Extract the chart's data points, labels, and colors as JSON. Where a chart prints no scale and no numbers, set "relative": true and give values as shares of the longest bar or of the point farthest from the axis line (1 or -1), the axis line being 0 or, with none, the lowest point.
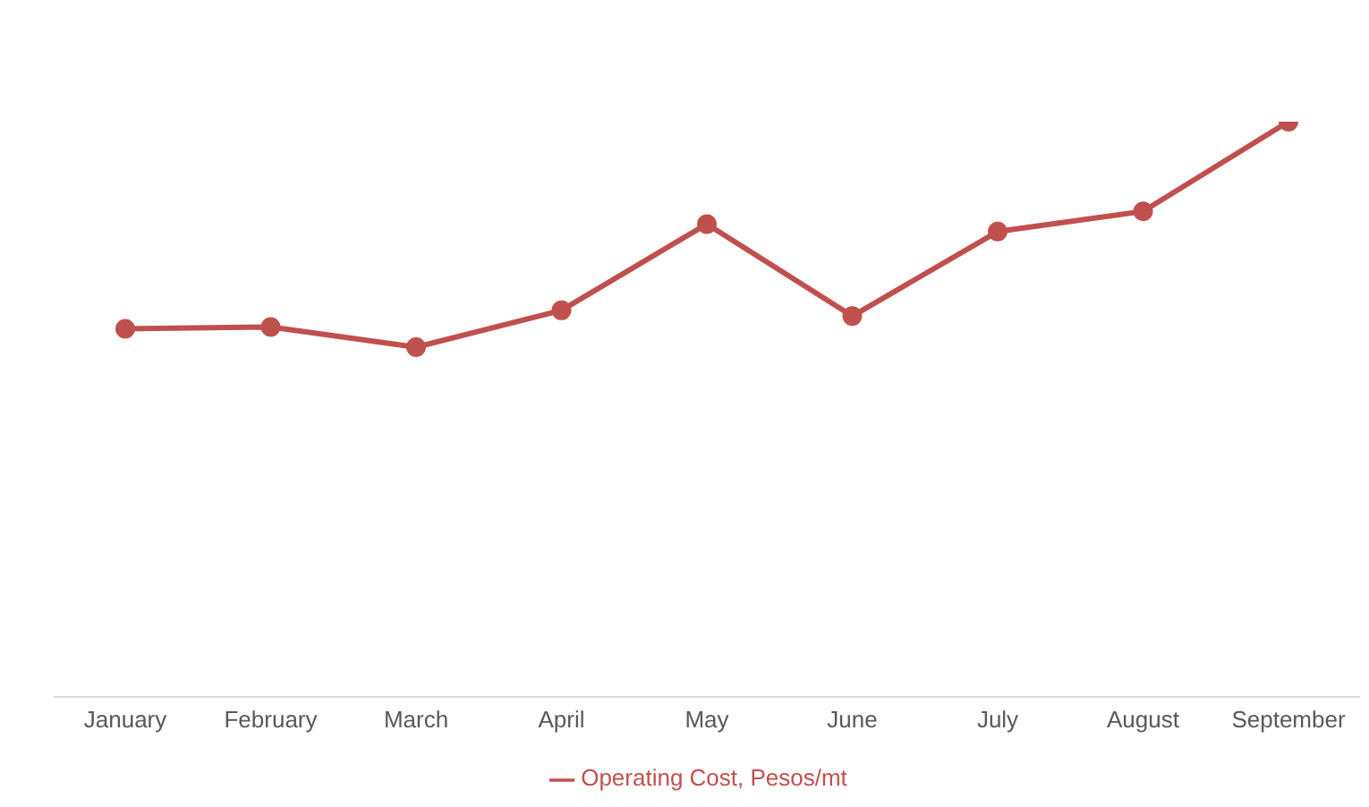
{
  "chart_data": {
    "type": "line",
    "relative": true,
    "categories": [
      "January",
      "February",
      "March",
      "April",
      "May",
      "June",
      "July",
      "August",
      "September"
    ],
    "series": [
      {
        "name": "Operating Cost, Pesos/mt",
        "color": "#c0504d",
        "values": [
          0.64,
          0.643,
          0.608,
          0.672,
          0.822,
          0.662,
          0.809,
          0.844,
          1
        ]
      }
    ],
    "marker": "circle",
    "legend": "bottom"
  }
}
